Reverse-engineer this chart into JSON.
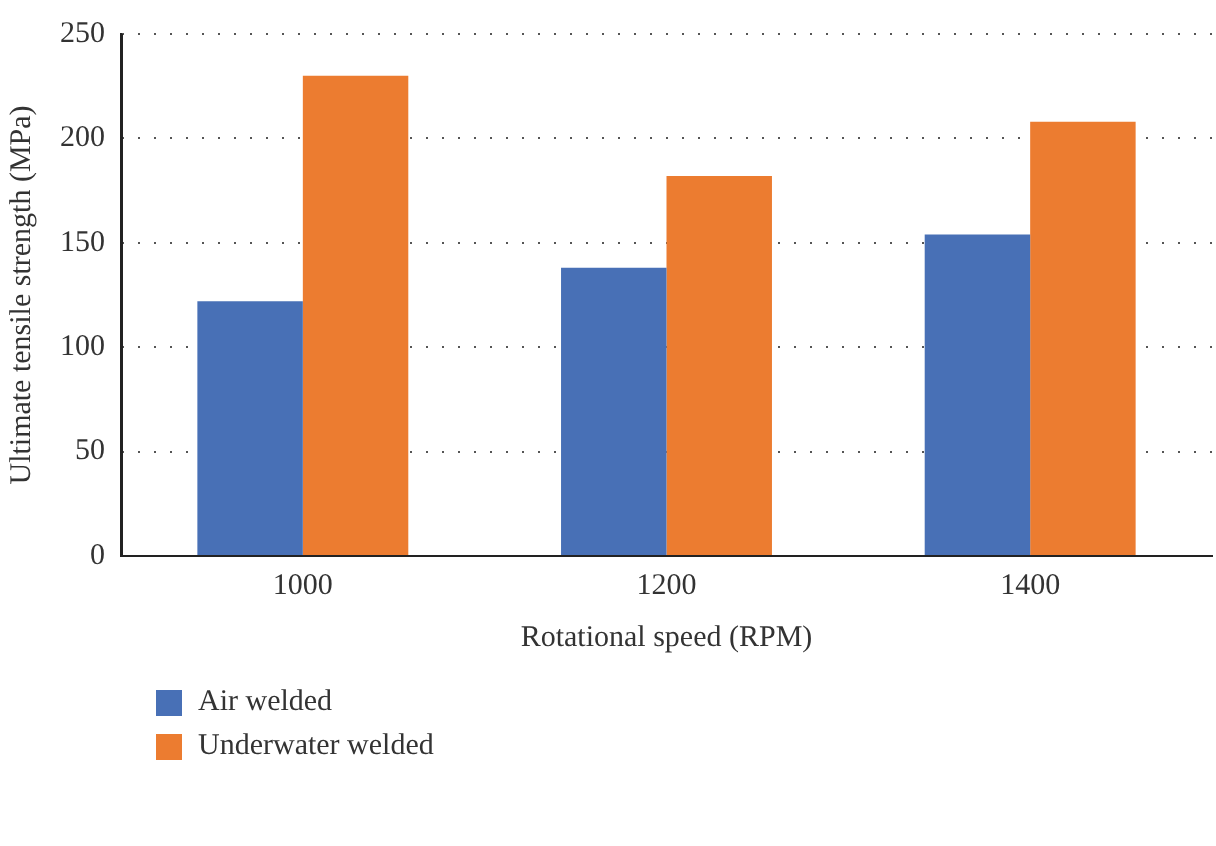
{
  "chart_data": {
    "type": "bar",
    "xlabel": "Rotational speed (RPM)",
    "ylabel": "Ultimate tensile strength (MPa)",
    "categories": [
      "1000",
      "1200",
      "1400"
    ],
    "series": [
      {
        "name": "Air welded",
        "color": "#4870b6",
        "values": [
          122,
          138,
          154
        ]
      },
      {
        "name": "Underwater welded",
        "color": "#ec7c30",
        "values": [
          230,
          182,
          208
        ]
      }
    ],
    "ylim": [
      0,
      250
    ],
    "yticks": [
      0,
      50,
      100,
      150,
      200,
      250
    ],
    "grid": "y",
    "legend": "bottom left"
  }
}
